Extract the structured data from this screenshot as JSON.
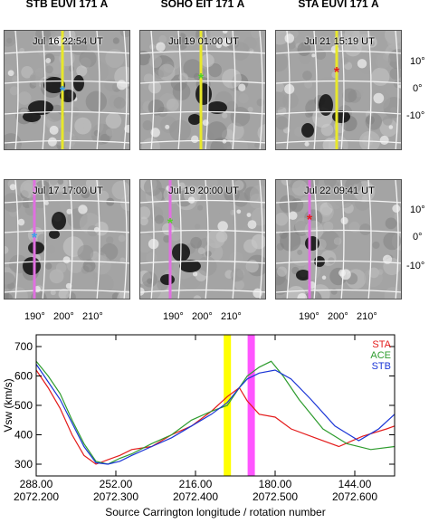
{
  "columns": [
    {
      "title": "STB EUVI 171 Å",
      "times": [
        "Jul 16 22:54 UT",
        "Jul 17 17:00 UT"
      ],
      "star_colors": [
        "#3aa0e8",
        "#3aa0e8"
      ]
    },
    {
      "title": "SOHO EIT 171 Å",
      "times": [
        "Jul 19 01:00 UT",
        "Jul 19 20:00 UT"
      ],
      "star_colors": [
        "#52d12a",
        "#52d12a"
      ]
    },
    {
      "title": "STA EUVI 171 Å",
      "times": [
        "Jul 21 15:19 UT",
        "Jul 22 09:41 UT"
      ],
      "star_colors": [
        "#e41b1b",
        "#e41b1b"
      ]
    }
  ],
  "row_line_colors": [
    "#e8e82a",
    "#e070e0"
  ],
  "lat_labels": [
    "10°",
    "0°",
    "-10°"
  ],
  "lon_labels": [
    "190°",
    "200°",
    "210°"
  ],
  "chart_data": {
    "type": "line",
    "ylabel": "Vsw (km/s)",
    "xlabel": "Source Carrington longitude / rotation number",
    "ylim": [
      260,
      740
    ],
    "y_ticks": [
      300,
      400,
      500,
      600,
      700
    ],
    "x_ticks_top": [
      "288.00",
      "252.00",
      "216.00",
      "180.00",
      "144.00"
    ],
    "x_ticks_bottom": [
      "2072.200",
      "2072.300",
      "2072.400",
      "2072.500",
      "2072.600"
    ],
    "xlim": [
      2072.2,
      2072.65
    ],
    "vbands": [
      {
        "x": 2072.44,
        "color": "#ffff00"
      },
      {
        "x": 2072.47,
        "color": "#ff55ff"
      }
    ],
    "legend": [
      {
        "label": "STA",
        "color": "#e41b1b"
      },
      {
        "label": "ACE",
        "color": "#2e9c2e"
      },
      {
        "label": "STB",
        "color": "#1a35d6"
      }
    ],
    "series": [
      {
        "name": "STA",
        "color": "#e41b1b",
        "x": [
          2072.2,
          2072.215,
          2072.23,
          2072.245,
          2072.26,
          2072.275,
          2072.29,
          2072.305,
          2072.32,
          2072.345,
          2072.37,
          2072.395,
          2072.42,
          2072.44,
          2072.455,
          2072.465,
          2072.48,
          2072.5,
          2072.52,
          2072.55,
          2072.58,
          2072.61,
          2072.64,
          2072.65
        ],
        "y": [
          620,
          560,
          490,
          400,
          330,
          300,
          315,
          330,
          350,
          360,
          400,
          430,
          480,
          530,
          560,
          515,
          470,
          460,
          420,
          390,
          360,
          395,
          420,
          430
        ]
      },
      {
        "name": "ACE",
        "color": "#2e9c2e",
        "x": [
          2072.2,
          2072.215,
          2072.23,
          2072.245,
          2072.26,
          2072.275,
          2072.29,
          2072.305,
          2072.32,
          2072.345,
          2072.37,
          2072.395,
          2072.42,
          2072.44,
          2072.455,
          2072.465,
          2072.48,
          2072.495,
          2072.51,
          2072.53,
          2072.56,
          2072.59,
          2072.62,
          2072.65
        ],
        "y": [
          650,
          600,
          540,
          450,
          370,
          310,
          300,
          320,
          335,
          370,
          400,
          450,
          480,
          500,
          560,
          600,
          630,
          650,
          600,
          520,
          420,
          370,
          350,
          360
        ]
      },
      {
        "name": "STB",
        "color": "#1a35d6",
        "x": [
          2072.2,
          2072.215,
          2072.23,
          2072.245,
          2072.26,
          2072.275,
          2072.29,
          2072.305,
          2072.32,
          2072.345,
          2072.37,
          2072.395,
          2072.42,
          2072.44,
          2072.455,
          2072.465,
          2072.48,
          2072.5,
          2072.52,
          2072.545,
          2072.575,
          2072.605,
          2072.63,
          2072.65
        ],
        "y": [
          640,
          580,
          520,
          440,
          360,
          305,
          300,
          310,
          330,
          360,
          390,
          430,
          470,
          510,
          560,
          590,
          610,
          620,
          590,
          520,
          430,
          380,
          420,
          470
        ]
      }
    ]
  }
}
